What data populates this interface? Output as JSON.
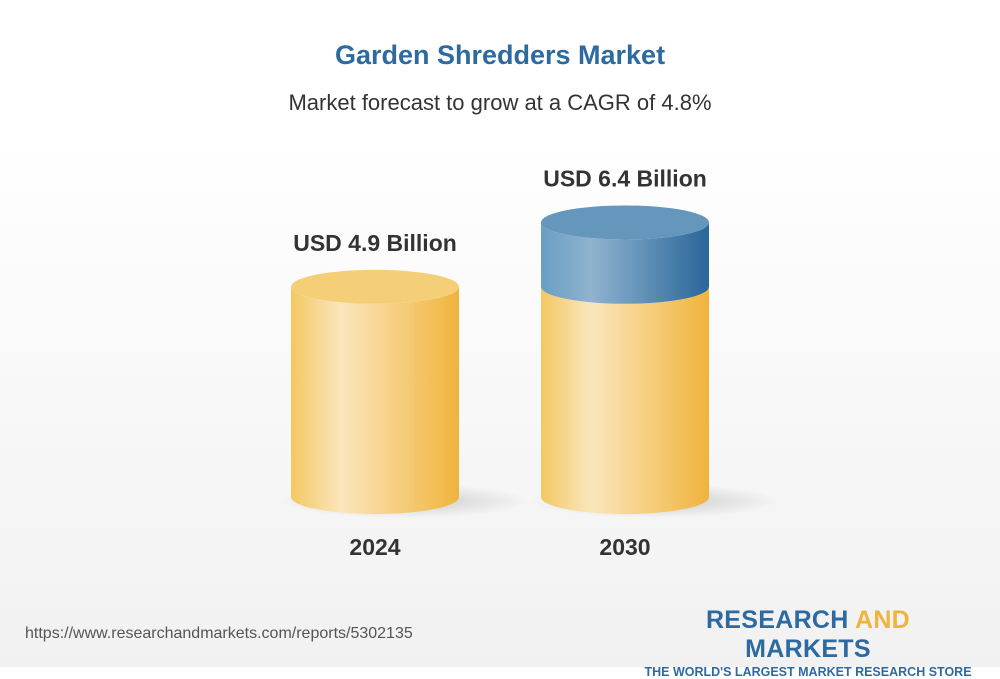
{
  "title": "Garden Shredders Market",
  "subtitle": "Market forecast to grow at a CAGR of 4.8%",
  "url": "https://www.researchandmarkets.com/reports/5302135",
  "logo": {
    "word1": "RESEARCH",
    "word2": "AND",
    "word3": "MARKETS",
    "tagline": "THE WORLD'S LARGEST MARKET RESEARCH STORE"
  },
  "colors": {
    "base": "#f2bd4a",
    "growth": "#2e6b9e",
    "title": "#2c6aa0"
  },
  "chart_data": {
    "type": "bar",
    "style": "3d-cylinder",
    "categories": [
      "2024",
      "2030"
    ],
    "values": [
      4.9,
      6.4
    ],
    "unit": "USD Billion",
    "data_labels": [
      "USD 4.9 Billion",
      "USD 6.4 Billion"
    ],
    "title": "Garden Shredders Market",
    "subtitle": "Market forecast to grow at a CAGR of 4.8%",
    "cagr": "4.8%",
    "grid": false,
    "legend": "none"
  }
}
